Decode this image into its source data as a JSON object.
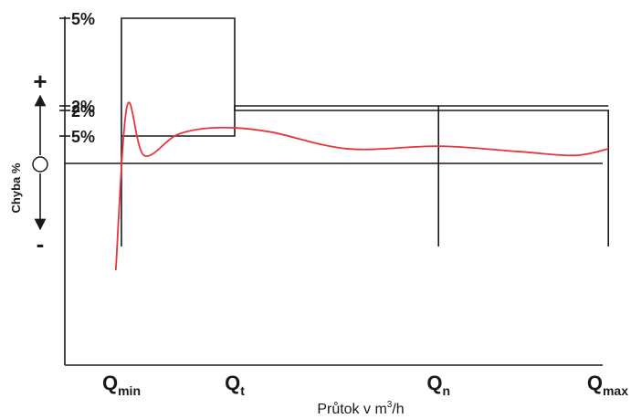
{
  "chart_data": {
    "type": "line",
    "title": "",
    "xlabel": "Průtok v m³/h",
    "xlabel_prefix": "Průtok v m",
    "xlabel_sup": "3",
    "xlabel_suffix": "/h",
    "ylabel": "Chyba %",
    "y_positive_sign": "+",
    "y_negative_sign": "-",
    "x_ticks": [
      {
        "main": "Q",
        "sub": "min"
      },
      {
        "main": "Q",
        "sub": "t"
      },
      {
        "main": "Q",
        "sub": "n"
      },
      {
        "main": "Q",
        "sub": "max"
      }
    ],
    "x_positions": [
      0,
      1,
      2.8,
      4.3
    ],
    "xlim": [
      -0.5,
      4.3
    ],
    "y_ticks": [
      {
        "label": "5%",
        "value": 5
      },
      {
        "label": "2%",
        "value": 2
      },
      {
        "label": "2%",
        "value": -2
      },
      {
        "label": "5%",
        "value": -5
      }
    ],
    "ylim": [
      -7,
      5
    ],
    "upper_limit": {
      "x": [
        0,
        0,
        1,
        1,
        4.3,
        4.3
      ],
      "y": [
        -7,
        5,
        5,
        2,
        2,
        -7
      ]
    },
    "lower_limit": {
      "x": [
        0,
        1,
        1,
        4.3
      ],
      "y": [
        -5,
        -5,
        -2,
        -2
      ]
    },
    "qn_line": {
      "x": 2.8,
      "y": [
        -7,
        -2
      ]
    },
    "zero_line": 0,
    "series": [
      {
        "color": "#e8343c",
        "x": [
          -0.05,
          0.05,
          0.2,
          0.5,
          0.85,
          1.3,
          2.0,
          2.8,
          3.5,
          4.0,
          4.3
        ],
        "y": [
          -6.2,
          -2.0,
          0.3,
          1.1,
          1.35,
          1.2,
          0.55,
          0.65,
          0.45,
          0.3,
          0.55
        ]
      }
    ]
  }
}
